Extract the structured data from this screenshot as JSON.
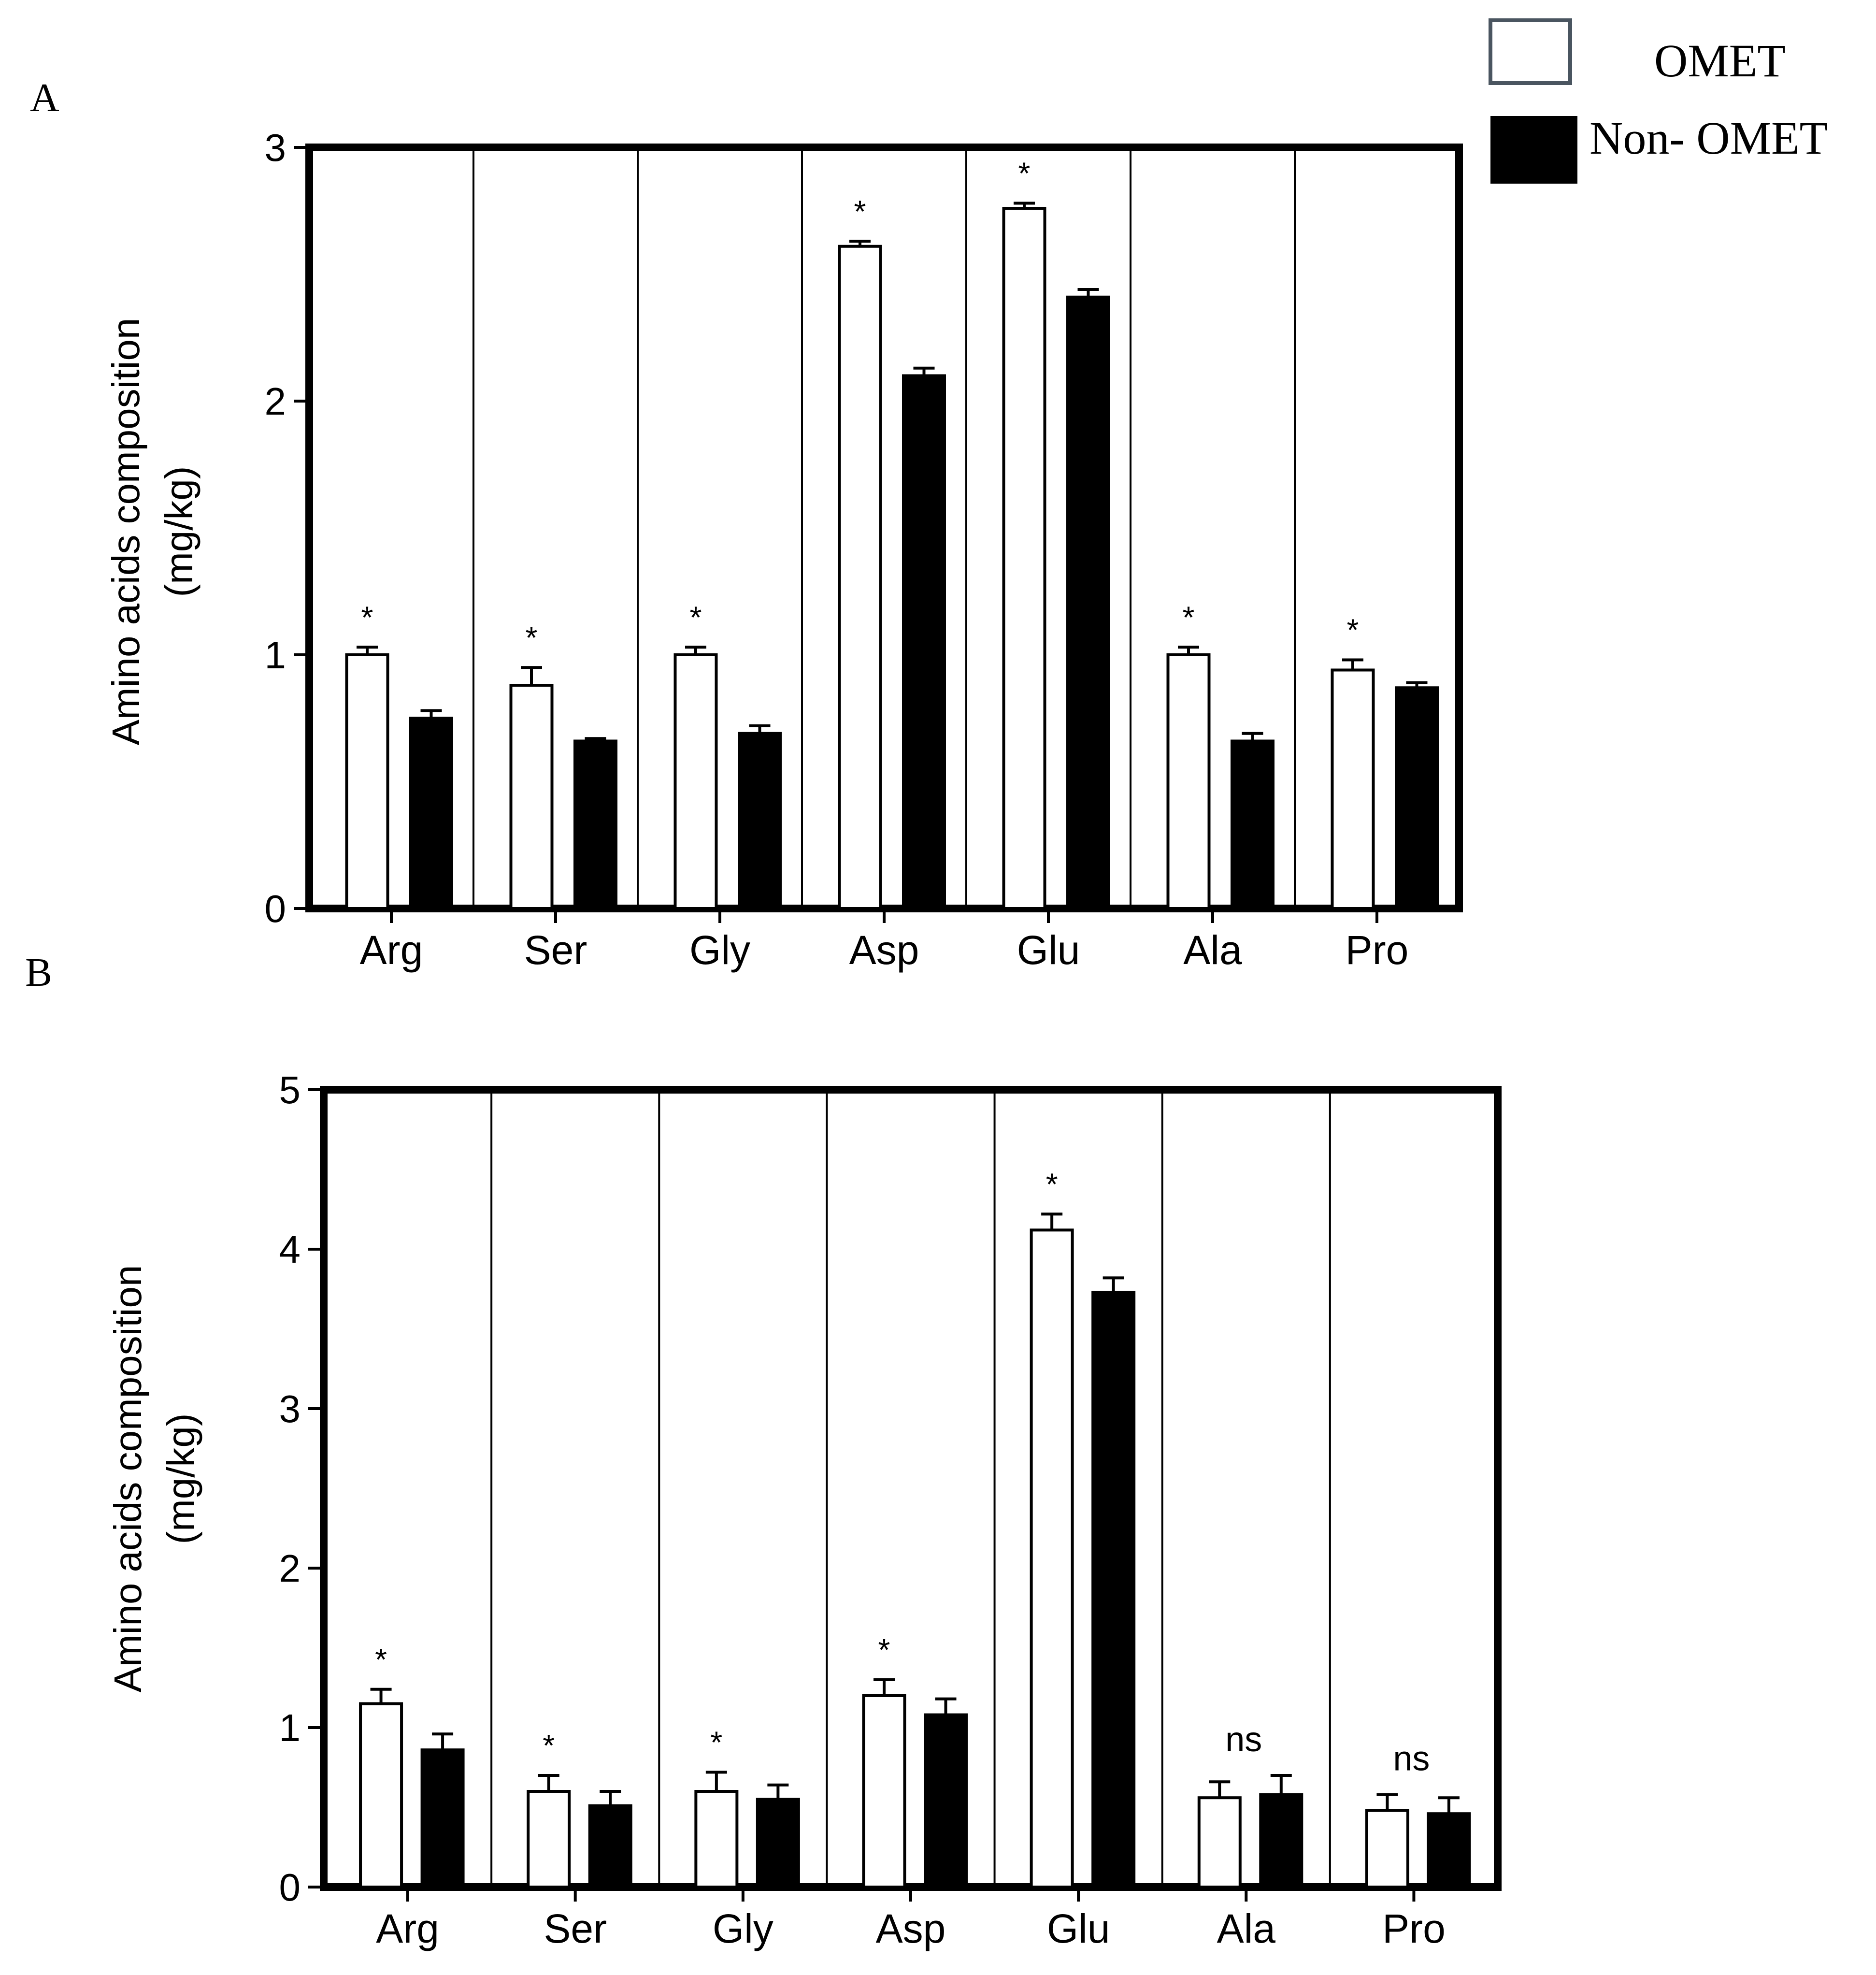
{
  "legend": {
    "placement": "top-right",
    "items": [
      {
        "label": "OMET",
        "fill": "#ffffff",
        "stroke": "#4a5560"
      },
      {
        "label": "Non- OMET",
        "fill": "#000000",
        "stroke": "#000000"
      }
    ]
  },
  "panel_labels": [
    "A",
    "B"
  ],
  "chart_data": [
    {
      "type": "bar",
      "panel": "A",
      "categories": [
        "Arg",
        "Ser",
        "Gly",
        "Asp",
        "Glu",
        "Ala",
        "Pro"
      ],
      "series": [
        {
          "name": "OMET",
          "values": [
            1.0,
            0.88,
            1.0,
            2.61,
            2.76,
            1.0,
            0.94
          ],
          "errors": [
            0.03,
            0.07,
            0.03,
            0.02,
            0.02,
            0.03,
            0.04
          ]
        },
        {
          "name": "Non- OMET",
          "values": [
            0.75,
            0.66,
            0.69,
            2.1,
            2.41,
            0.66,
            0.87
          ],
          "errors": [
            0.03,
            0.01,
            0.03,
            0.03,
            0.03,
            0.03,
            0.02
          ]
        }
      ],
      "annotations": [
        "*",
        "*",
        "*",
        "*",
        "*",
        "*",
        "*"
      ],
      "ylabel_line1": "Amino acids composition",
      "ylabel_line2": "(mg/kg)",
      "ylim": [
        0,
        3
      ],
      "yticks": [
        0,
        1,
        2,
        3
      ],
      "ytick_labels": [
        "0",
        "1",
        "2",
        "3"
      ],
      "grid": false
    },
    {
      "type": "bar",
      "panel": "B",
      "categories": [
        "Arg",
        "Ser",
        "Gly",
        "Asp",
        "Glu",
        "Ala",
        "Pro"
      ],
      "series": [
        {
          "name": "OMET",
          "values": [
            1.15,
            0.6,
            0.6,
            1.2,
            4.12,
            0.56,
            0.48
          ],
          "errors": [
            0.09,
            0.1,
            0.12,
            0.1,
            0.1,
            0.1,
            0.1
          ]
        },
        {
          "name": "Non- OMET",
          "values": [
            0.86,
            0.51,
            0.55,
            1.08,
            3.73,
            0.58,
            0.46
          ],
          "errors": [
            0.1,
            0.09,
            0.09,
            0.1,
            0.09,
            0.12,
            0.1
          ]
        }
      ],
      "annotations": [
        "*",
        "*",
        "*",
        "*",
        "*",
        "ns",
        "ns"
      ],
      "ylabel_line1": "Amino acids composition",
      "ylabel_line2": "(mg/kg)",
      "ylim": [
        0,
        5
      ],
      "yticks": [
        0,
        1,
        2,
        3,
        4,
        5
      ],
      "ytick_labels": [
        "0",
        "1",
        "2",
        "3",
        "4",
        "5"
      ],
      "grid": false
    }
  ]
}
